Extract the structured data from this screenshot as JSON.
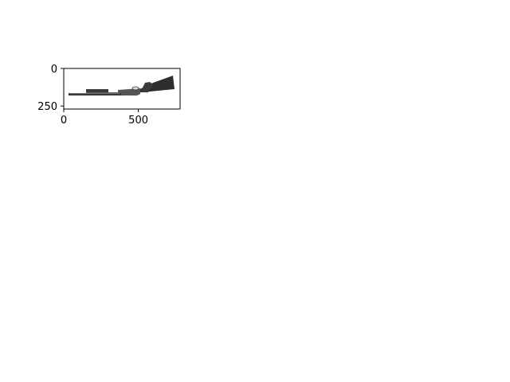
{
  "chart_data": {
    "type": "image",
    "image_extent": {
      "x": [
        0,
        780
      ],
      "y": [
        270,
        0
      ]
    },
    "xlim": [
      0,
      780
    ],
    "ylim": [
      270,
      0
    ],
    "y_inverted": true,
    "xticks": [
      0,
      500
    ],
    "xtick_labels": [
      "0",
      "500"
    ],
    "yticks": [
      0,
      250
    ],
    "ytick_labels": [
      "0",
      "250"
    ],
    "grid": false,
    "title": "",
    "xlabel": "",
    "ylabel": "",
    "image_content": "grayscale-shotgun-picture",
    "colors": {
      "frame": "#000000",
      "background": "#ffffff",
      "stock": "#2e2e2e",
      "barrel": "#3a3a3a",
      "receiver": "#4a4a4a",
      "highlight": "#d8d8d8"
    }
  }
}
